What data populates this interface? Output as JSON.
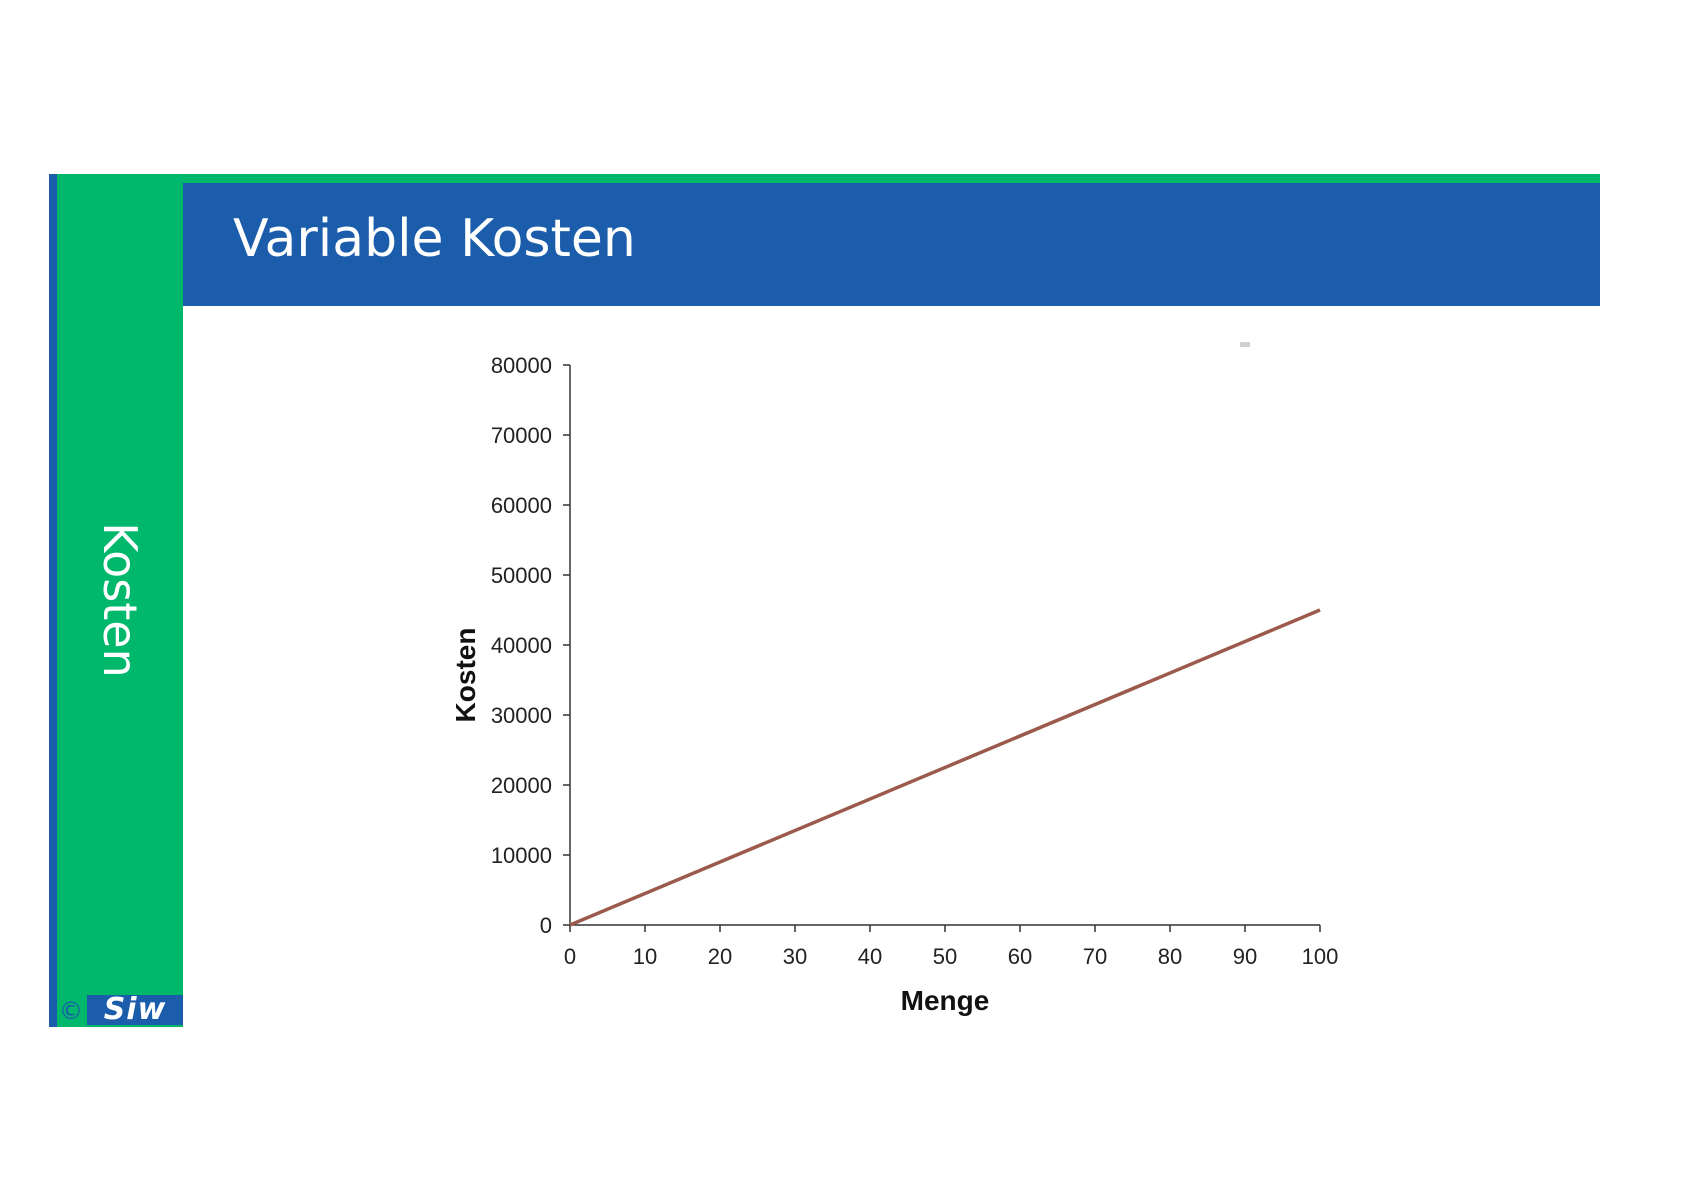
{
  "slide": {
    "title": "Variable Kosten",
    "side_label": "Kosten",
    "logo": {
      "copyright": "©",
      "text": "Siw"
    }
  },
  "colors": {
    "brand_blue": "#1b5dab",
    "brand_green": "#00b86b",
    "line_color": "#9b5a4c"
  },
  "chart_data": {
    "type": "line",
    "title": "",
    "xlabel": "Menge",
    "ylabel": "Kosten",
    "xlim": [
      0,
      100
    ],
    "ylim": [
      0,
      80000
    ],
    "x_ticks": [
      0,
      10,
      20,
      30,
      40,
      50,
      60,
      70,
      80,
      90,
      100
    ],
    "y_ticks": [
      0,
      10000,
      20000,
      30000,
      40000,
      50000,
      60000,
      70000,
      80000
    ],
    "grid": false,
    "legend": "none",
    "series": [
      {
        "x": [
          0,
          100
        ],
        "values": [
          0,
          45000
        ]
      }
    ]
  }
}
